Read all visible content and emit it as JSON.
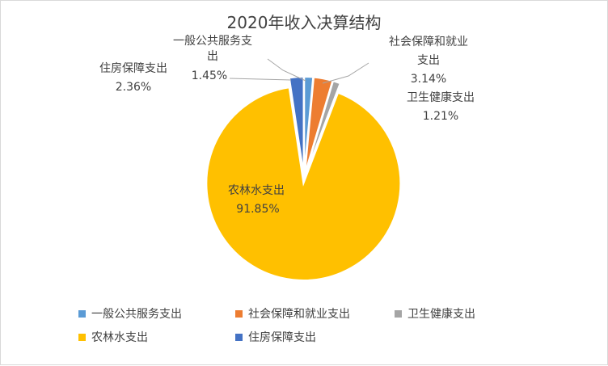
{
  "chart_data": {
    "type": "pie",
    "title": "2020年收入决算结构",
    "categories": [
      "一般公共服务支出",
      "社会保障和就业支出",
      "卫生健康支出",
      "农林水支出",
      "住房保障支出"
    ],
    "values": [
      1.45,
      3.14,
      1.21,
      91.85,
      2.36
    ],
    "value_labels": [
      "1.45%",
      "3.14%",
      "1.21%",
      "91.85%",
      "2.36%"
    ],
    "colors": [
      "#5b9bd5",
      "#ed7d31",
      "#a5a5a5",
      "#ffc000",
      "#4472c4"
    ],
    "exploded": true,
    "legend": "bottom"
  }
}
